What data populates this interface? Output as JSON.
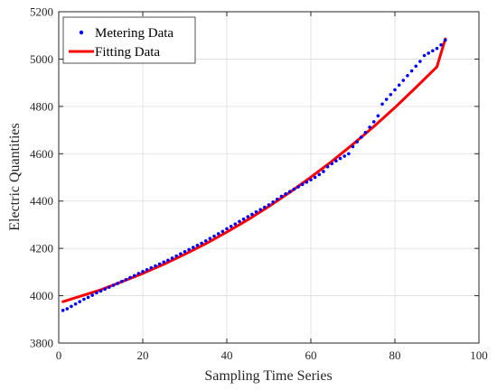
{
  "chart_data": {
    "type": "line",
    "xlabel": "Sampling Time Series",
    "ylabel": "Electric Quantities",
    "xlim": [
      0,
      100
    ],
    "ylim": [
      3800,
      5200
    ],
    "xticks": [
      0,
      20,
      40,
      60,
      80,
      100
    ],
    "yticks": [
      3800,
      4000,
      4200,
      4400,
      4600,
      4800,
      5000,
      5200
    ],
    "grid": true,
    "legend_position": "top-left",
    "series": [
      {
        "name": "Metering Data",
        "style": "dots",
        "color": "#0000ff",
        "x": [
          1,
          2,
          3,
          4,
          5,
          6,
          7,
          8,
          9,
          10,
          11,
          12,
          13,
          14,
          15,
          16,
          17,
          18,
          19,
          20,
          21,
          22,
          23,
          24,
          25,
          26,
          27,
          28,
          29,
          30,
          31,
          32,
          33,
          34,
          35,
          36,
          37,
          38,
          39,
          40,
          41,
          42,
          43,
          44,
          45,
          46,
          47,
          48,
          49,
          50,
          51,
          52,
          53,
          54,
          55,
          56,
          57,
          58,
          59,
          60,
          61,
          62,
          63,
          64,
          65,
          66,
          67,
          68,
          69,
          70,
          71,
          72,
          73,
          74,
          75,
          76,
          77,
          78,
          79,
          80,
          81,
          82,
          83,
          84,
          85,
          86,
          87,
          88,
          89,
          90,
          91,
          92
        ],
        "y": [
          3938,
          3945,
          3955,
          3965,
          3975,
          3985,
          3993,
          4002,
          4012,
          4020,
          4028,
          4036,
          4044,
          4052,
          4060,
          4068,
          4077,
          4085,
          4094,
          4102,
          4110,
          4118,
          4126,
          4134,
          4142,
          4150,
          4159,
          4168,
          4177,
          4186,
          4195,
          4204,
          4213,
          4222,
          4232,
          4242,
          4252,
          4262,
          4272,
          4283,
          4293,
          4303,
          4314,
          4324,
          4334,
          4344,
          4354,
          4364,
          4374,
          4384,
          4396,
          4408,
          4420,
          4430,
          4440,
          4450,
          4460,
          4470,
          4480,
          4490,
          4500,
          4512,
          4525,
          4545,
          4558,
          4570,
          4580,
          4590,
          4600,
          4630,
          4650,
          4670,
          4690,
          4712,
          4735,
          4760,
          4810,
          4830,
          4850,
          4870,
          4890,
          4910,
          4930,
          4950,
          4970,
          4990,
          5015,
          5025,
          5035,
          5045,
          5060,
          5080
        ]
      },
      {
        "name": "Fitting Data",
        "style": "line",
        "color": "#ff0000",
        "x": [
          1,
          5,
          10,
          15,
          20,
          25,
          30,
          35,
          40,
          45,
          50,
          55,
          60,
          65,
          70,
          75,
          80,
          85,
          90,
          92
        ],
        "y": [
          3975,
          3997,
          4025,
          4059,
          4094,
          4133,
          4175,
          4220,
          4269,
          4321,
          4377,
          4437,
          4501,
          4568,
          4640,
          4715,
          4795,
          4880,
          4967,
          5085
        ]
      }
    ]
  }
}
